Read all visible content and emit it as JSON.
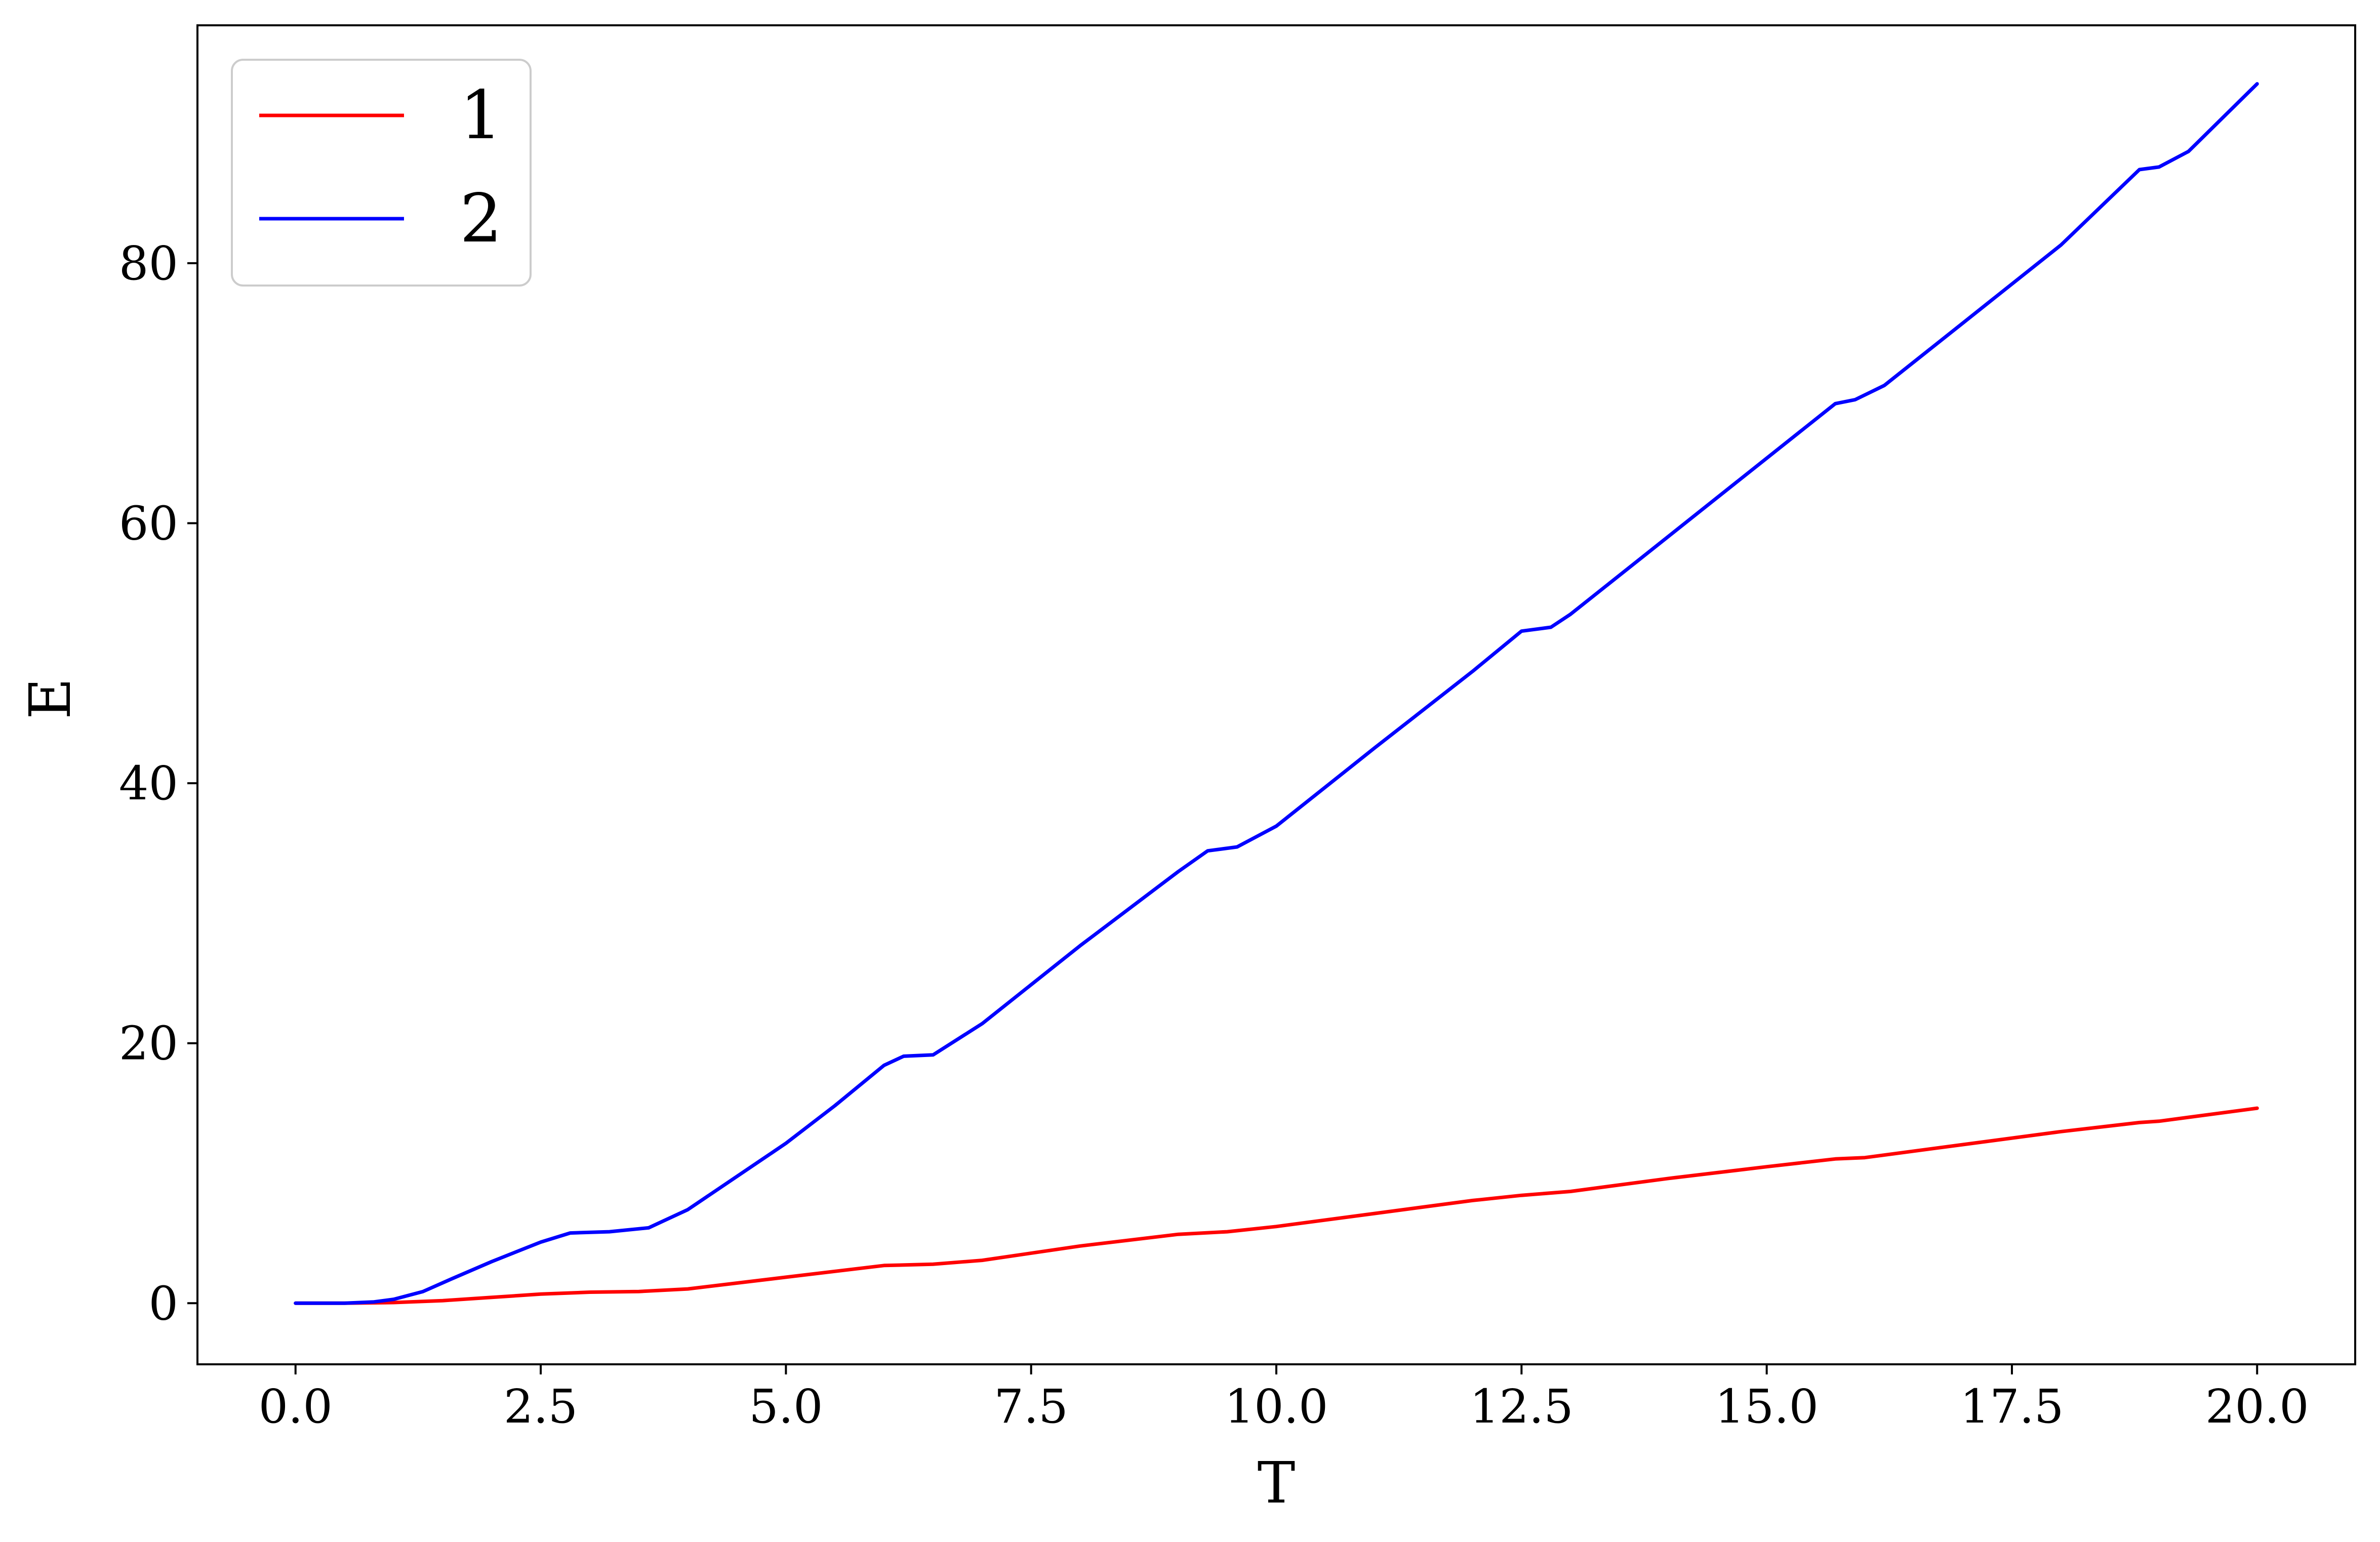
{
  "chart_data": {
    "type": "line",
    "title": "",
    "xlabel": "T",
    "ylabel": "E",
    "xlim": [
      -1.0,
      21.0
    ],
    "ylim": [
      -4.7,
      98.3
    ],
    "xticks": [
      0.0,
      2.5,
      5.0,
      7.5,
      10.0,
      12.5,
      15.0,
      17.5,
      20.0
    ],
    "xtick_labels": [
      "0.0",
      "2.5",
      "5.0",
      "7.5",
      "10.0",
      "12.5",
      "15.0",
      "17.5",
      "20.0"
    ],
    "yticks": [
      0,
      20,
      40,
      60,
      80
    ],
    "ytick_labels": [
      "0",
      "20",
      "40",
      "60",
      "80"
    ],
    "grid": false,
    "legend_position": "top-left",
    "series": [
      {
        "name": "1",
        "color": "#ff0000",
        "points": [
          [
            0.0,
            0.0
          ],
          [
            0.5,
            0.0
          ],
          [
            1.0,
            0.05
          ],
          [
            1.5,
            0.2
          ],
          [
            2.0,
            0.45
          ],
          [
            2.5,
            0.7
          ],
          [
            3.0,
            0.85
          ],
          [
            3.5,
            0.9
          ],
          [
            4.0,
            1.1
          ],
          [
            5.0,
            2.0
          ],
          [
            6.0,
            2.9
          ],
          [
            6.5,
            3.0
          ],
          [
            7.0,
            3.3
          ],
          [
            8.0,
            4.4
          ],
          [
            9.0,
            5.3
          ],
          [
            9.5,
            5.5
          ],
          [
            10.0,
            5.9
          ],
          [
            11.0,
            6.9
          ],
          [
            12.0,
            7.9
          ],
          [
            12.5,
            8.3
          ],
          [
            13.0,
            8.6
          ],
          [
            14.0,
            9.6
          ],
          [
            15.0,
            10.5
          ],
          [
            15.7,
            11.1
          ],
          [
            16.0,
            11.2
          ],
          [
            17.0,
            12.2
          ],
          [
            18.0,
            13.2
          ],
          [
            18.8,
            13.9
          ],
          [
            19.0,
            14.0
          ],
          [
            20.0,
            15.0
          ]
        ]
      },
      {
        "name": "2",
        "color": "#0000ff",
        "points": [
          [
            0.0,
            0.0
          ],
          [
            0.5,
            0.0
          ],
          [
            0.8,
            0.1
          ],
          [
            1.0,
            0.3
          ],
          [
            1.3,
            0.9
          ],
          [
            1.6,
            1.9
          ],
          [
            2.0,
            3.2
          ],
          [
            2.5,
            4.7
          ],
          [
            2.8,
            5.4
          ],
          [
            3.2,
            5.5
          ],
          [
            3.6,
            5.8
          ],
          [
            4.0,
            7.2
          ],
          [
            5.0,
            12.3
          ],
          [
            5.5,
            15.2
          ],
          [
            6.0,
            18.3
          ],
          [
            6.2,
            19.0
          ],
          [
            6.5,
            19.1
          ],
          [
            7.0,
            21.5
          ],
          [
            8.0,
            27.5
          ],
          [
            9.0,
            33.2
          ],
          [
            9.3,
            34.8
          ],
          [
            9.6,
            35.1
          ],
          [
            10.0,
            36.7
          ],
          [
            11.0,
            42.7
          ],
          [
            12.0,
            48.6
          ],
          [
            12.5,
            51.7
          ],
          [
            12.8,
            52.0
          ],
          [
            13.0,
            53.0
          ],
          [
            14.0,
            59.0
          ],
          [
            15.0,
            65.0
          ],
          [
            15.7,
            69.2
          ],
          [
            15.9,
            69.5
          ],
          [
            16.2,
            70.6
          ],
          [
            17.0,
            75.4
          ],
          [
            18.0,
            81.4
          ],
          [
            18.8,
            87.2
          ],
          [
            19.0,
            87.4
          ],
          [
            19.3,
            88.6
          ],
          [
            20.0,
            93.8
          ]
        ]
      }
    ]
  }
}
